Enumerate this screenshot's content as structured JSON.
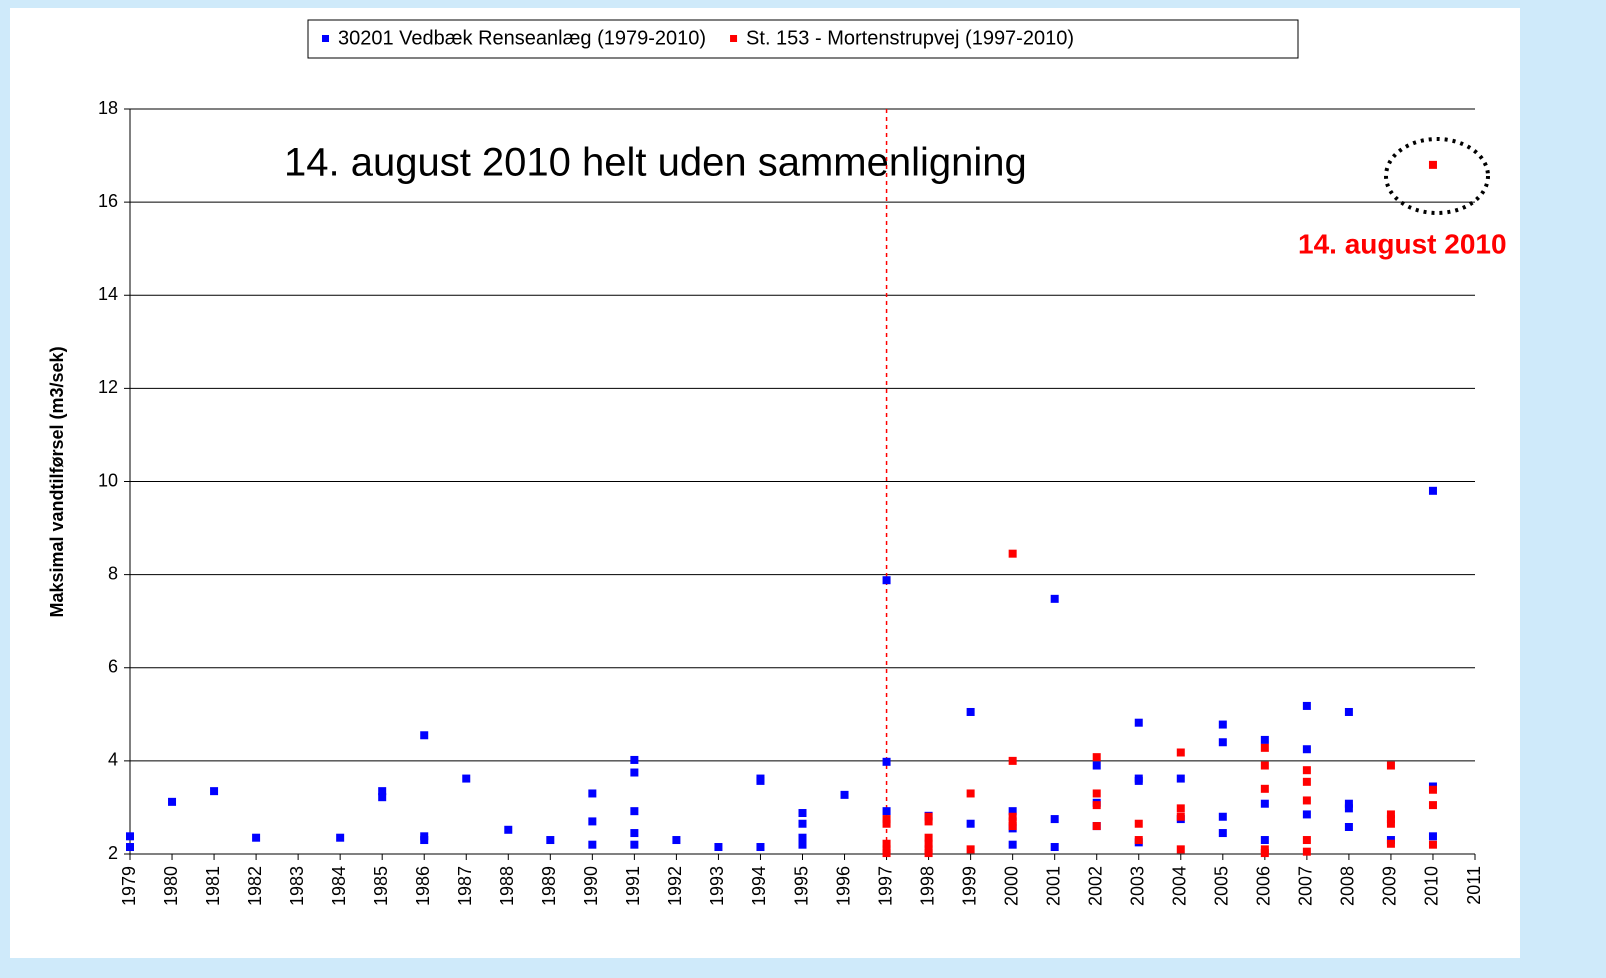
{
  "chart_data": {
    "type": "scatter",
    "legend": "top",
    "ylabel": "Maksimal vandtilførsel (m3/sek)",
    "annotations": [
      "14. august 2010 helt uden sammenligning",
      "14. august 2010"
    ],
    "annotation_color": "#ff0000",
    "vline": {
      "x": 1997,
      "color": "#ff0000"
    },
    "xlim": [
      1979,
      2011
    ],
    "xticks": [
      1979,
      1980,
      1981,
      1982,
      1983,
      1984,
      1985,
      1986,
      1987,
      1988,
      1989,
      1990,
      1991,
      1992,
      1993,
      1994,
      1995,
      1996,
      1997,
      1998,
      1999,
      2000,
      2001,
      2002,
      2003,
      2004,
      2005,
      2006,
      2007,
      2008,
      2009,
      2010,
      2011
    ],
    "ylim": [
      2,
      18
    ],
    "yticks": [
      2,
      4,
      6,
      8,
      10,
      12,
      14,
      16,
      18
    ],
    "grid": true,
    "series": [
      {
        "name": "30201 Vedbæk Renseanlæg (1979-2010)",
        "color": "#0000ff",
        "x": [
          1979,
          1979,
          1980,
          1981,
          1982,
          1984,
          1985,
          1985,
          1986,
          1986,
          1986,
          1987,
          1988,
          1989,
          1990,
          1990,
          1990,
          1991,
          1991,
          1991,
          1991,
          1991,
          1992,
          1993,
          1994,
          1994,
          1994,
          1995,
          1995,
          1995,
          1995,
          1996,
          1997,
          1997,
          1997,
          1998,
          1999,
          1999,
          2000,
          2000,
          2000,
          2001,
          2001,
          2001,
          2002,
          2002,
          2002,
          2003,
          2003,
          2003,
          2003,
          2004,
          2004,
          2005,
          2005,
          2005,
          2005,
          2006,
          2006,
          2006,
          2007,
          2007,
          2007,
          2008,
          2008,
          2008,
          2008,
          2009,
          2010,
          2010,
          2010
        ],
        "values": [
          2.38,
          2.15,
          3.12,
          3.35,
          2.35,
          2.35,
          3.35,
          3.22,
          4.55,
          2.38,
          2.3,
          3.62,
          2.52,
          2.3,
          3.3,
          2.7,
          2.2,
          4.02,
          3.75,
          2.92,
          2.45,
          2.2,
          2.3,
          2.15,
          3.62,
          3.57,
          2.15,
          2.88,
          2.65,
          2.35,
          2.2,
          3.27,
          7.88,
          3.98,
          2.92,
          2.82,
          5.05,
          2.65,
          2.92,
          2.55,
          2.2,
          7.48,
          2.75,
          2.15,
          3.9,
          3.1,
          2.6,
          4.82,
          3.62,
          3.57,
          2.25,
          3.62,
          2.75,
          4.78,
          4.4,
          2.8,
          2.45,
          4.45,
          3.08,
          2.3,
          5.18,
          4.25,
          2.85,
          5.05,
          3.08,
          2.98,
          2.58,
          2.3,
          9.8,
          3.45,
          2.38
        ]
      },
      {
        "name": "St. 153 - Mortenstrupvej (1997-2010)",
        "color": "#ff0000",
        "x": [
          1997,
          1997,
          1997,
          1997,
          1997,
          1998,
          1998,
          1998,
          1998,
          1998,
          1998,
          1999,
          1999,
          2000,
          2000,
          2000,
          2000,
          2000,
          2002,
          2002,
          2002,
          2002,
          2003,
          2003,
          2004,
          2004,
          2004,
          2004,
          2006,
          2006,
          2006,
          2006,
          2006,
          2007,
          2007,
          2007,
          2007,
          2007,
          2009,
          2009,
          2009,
          2009,
          2009,
          2010,
          2010,
          2010,
          2010
        ],
        "values": [
          2.75,
          2.65,
          2.22,
          2.1,
          2.02,
          2.8,
          2.7,
          2.35,
          2.22,
          2.1,
          2.02,
          3.3,
          2.1,
          8.45,
          4.0,
          2.8,
          2.7,
          2.6,
          4.08,
          3.3,
          3.05,
          2.6,
          2.65,
          2.3,
          4.18,
          2.98,
          2.8,
          2.1,
          4.28,
          3.9,
          3.4,
          2.1,
          2.02,
          3.8,
          3.55,
          3.15,
          2.3,
          2.05,
          3.9,
          2.85,
          2.75,
          2.65,
          2.22,
          16.8,
          3.38,
          3.05,
          2.2
        ]
      }
    ]
  }
}
